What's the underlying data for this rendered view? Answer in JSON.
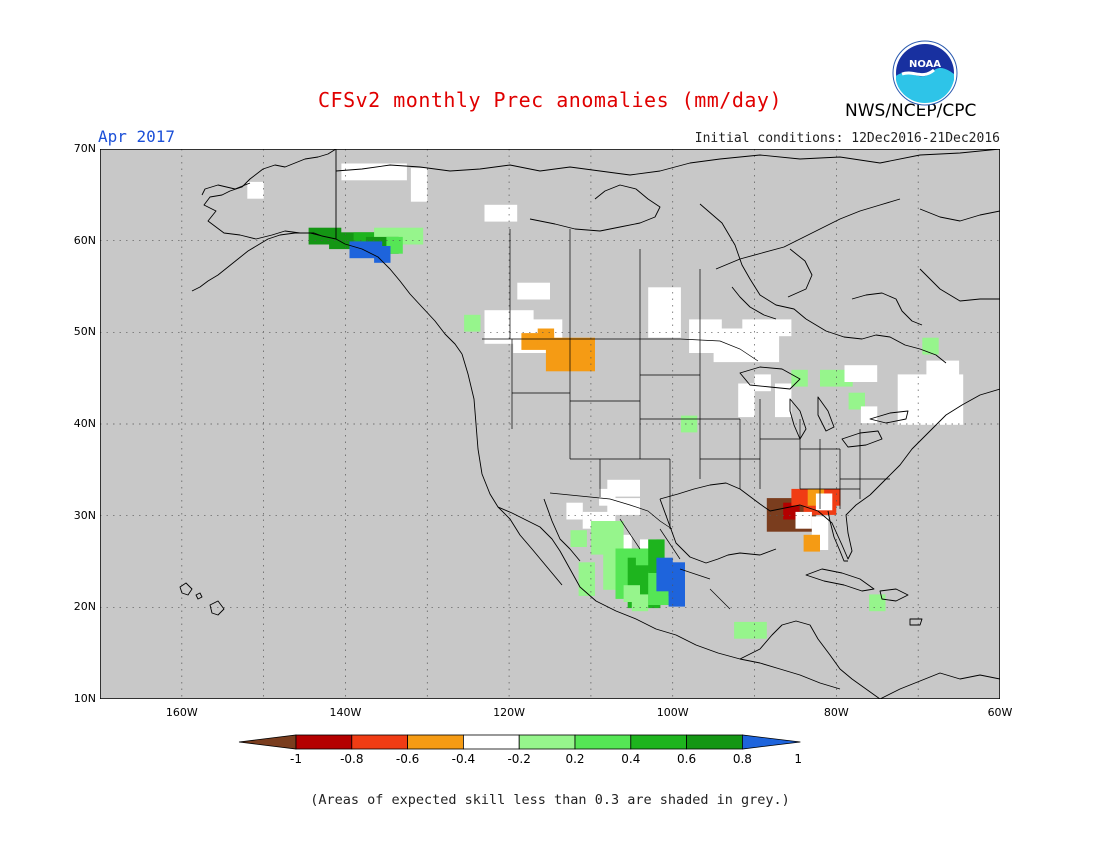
{
  "header": {
    "title": "CFSv2 monthly Prec anomalies (mm/day)",
    "month": "Apr 2017",
    "initial_conditions": "Initial conditions: 12Dec2016-21Dec2016",
    "agency": "NWS/NCEP/CPC",
    "logo_text": "NOAA"
  },
  "map": {
    "projection": "lat-lon",
    "lon_range": [
      -170,
      -60
    ],
    "lat_range": [
      10,
      70
    ],
    "grid": true,
    "background_color": "#c8c8c8",
    "lat_labels": [
      "70N",
      "60N",
      "50N",
      "40N",
      "30N",
      "20N",
      "10N"
    ],
    "lat_values": [
      70,
      60,
      50,
      40,
      30,
      20,
      10
    ],
    "lon_labels": [
      "160W",
      "140W",
      "120W",
      "100W",
      "80W",
      "60W"
    ],
    "lon_values": [
      -160,
      -140,
      -120,
      -100,
      -80,
      -60
    ],
    "anomaly_cells": [
      {
        "lon": -139.5,
        "lat": 67.5,
        "w": 4,
        "h": 1,
        "bin": "near-zero"
      },
      {
        "lon": -131,
        "lat": 67,
        "w": 1,
        "h": 2,
        "bin": "near-zero"
      },
      {
        "lon": -151,
        "lat": 65.5,
        "w": 1,
        "h": 1,
        "bin": "near-zero"
      },
      {
        "lon": -122,
        "lat": 63,
        "w": 2,
        "h": 1,
        "bin": "near-zero"
      },
      {
        "lon": -143.5,
        "lat": 60.5,
        "w": 2,
        "h": 1,
        "bin": "+0.8"
      },
      {
        "lon": -141,
        "lat": 60,
        "w": 3,
        "h": 1,
        "bin": "+0.8"
      },
      {
        "lon": -138,
        "lat": 60,
        "w": 2,
        "h": 1,
        "bin": "+0.6"
      },
      {
        "lon": -135.5,
        "lat": 60.5,
        "w": 3,
        "h": 1,
        "bin": "+0.2"
      },
      {
        "lon": -136.5,
        "lat": 59.5,
        "w": 2,
        "h": 1,
        "bin": "+0.8"
      },
      {
        "lon": -134,
        "lat": 59.5,
        "w": 1,
        "h": 1,
        "bin": "+0.4"
      },
      {
        "lon": -138.5,
        "lat": 59,
        "w": 2,
        "h": 1,
        "bin": ">1"
      },
      {
        "lon": -135.5,
        "lat": 58.5,
        "w": 1,
        "h": 1,
        "bin": ">1"
      },
      {
        "lon": -118,
        "lat": 54.5,
        "w": 2,
        "h": 1,
        "bin": "near-zero"
      },
      {
        "lon": -102,
        "lat": 54,
        "w": 2,
        "h": 3,
        "bin": "near-zero"
      },
      {
        "lon": -122,
        "lat": 51.5,
        "w": 3,
        "h": 2,
        "bin": "near-zero"
      },
      {
        "lon": -118.5,
        "lat": 50.5,
        "w": 3,
        "h": 2,
        "bin": "near-zero"
      },
      {
        "lon": -124.5,
        "lat": 51,
        "w": 1,
        "h": 1,
        "bin": "+0.2"
      },
      {
        "lon": -117.5,
        "lat": 49,
        "w": 2,
        "h": 1,
        "bin": "-0.4"
      },
      {
        "lon": -115.5,
        "lat": 49.5,
        "w": 1,
        "h": 1,
        "bin": "-0.4"
      },
      {
        "lon": -114.5,
        "lat": 48.5,
        "w": 3,
        "h": 2,
        "bin": "-0.4"
      },
      {
        "lon": -97,
        "lat": 50.5,
        "w": 2,
        "h": 2,
        "bin": "near-zero"
      },
      {
        "lon": -94,
        "lat": 49.5,
        "w": 4,
        "h": 2,
        "bin": "near-zero"
      },
      {
        "lon": -90.5,
        "lat": 50.5,
        "w": 3,
        "h": 1,
        "bin": "near-zero"
      },
      {
        "lon": -68.5,
        "lat": 48.5,
        "w": 1,
        "h": 1,
        "bin": "+0.2"
      },
      {
        "lon": -89,
        "lat": 44.5,
        "w": 1,
        "h": 1,
        "bin": "near-zero"
      },
      {
        "lon": -91,
        "lat": 43.5,
        "w": 1,
        "h": 2,
        "bin": "near-zero"
      },
      {
        "lon": -86.5,
        "lat": 43.5,
        "w": 1,
        "h": 2,
        "bin": "near-zero"
      },
      {
        "lon": -84.5,
        "lat": 45,
        "w": 1,
        "h": 1,
        "bin": "+0.2"
      },
      {
        "lon": -81,
        "lat": 45,
        "w": 2,
        "h": 1,
        "bin": "+0.2"
      },
      {
        "lon": -78,
        "lat": 45.5,
        "w": 2,
        "h": 1,
        "bin": "near-zero"
      },
      {
        "lon": -71.5,
        "lat": 44.5,
        "w": 4,
        "h": 3,
        "bin": "near-zero"
      },
      {
        "lon": -68,
        "lat": 46,
        "w": 2,
        "h": 2,
        "bin": "near-zero"
      },
      {
        "lon": -77.5,
        "lat": 42.5,
        "w": 1,
        "h": 1,
        "bin": "+0.2"
      },
      {
        "lon": -76,
        "lat": 41,
        "w": 1,
        "h": 1,
        "bin": "near-zero"
      },
      {
        "lon": -98,
        "lat": 40,
        "w": 1,
        "h": 1,
        "bin": "+0.2"
      },
      {
        "lon": -107,
        "lat": 33,
        "w": 2,
        "h": 1,
        "bin": "near-zero"
      },
      {
        "lon": -108,
        "lat": 32,
        "w": 1,
        "h": 1,
        "bin": "near-zero"
      },
      {
        "lon": -112,
        "lat": 30.5,
        "w": 1,
        "h": 1,
        "bin": "near-zero"
      },
      {
        "lon": -110,
        "lat": 29.5,
        "w": 2,
        "h": 1,
        "bin": "near-zero"
      },
      {
        "lon": -107,
        "lat": 31,
        "w": 2,
        "h": 1,
        "bin": "near-zero"
      },
      {
        "lon": -108,
        "lat": 27,
        "w": 2,
        "h": 1,
        "bin": "near-zero"
      },
      {
        "lon": -103,
        "lat": 26.5,
        "w": 1,
        "h": 1,
        "bin": "near-zero"
      },
      {
        "lon": -109,
        "lat": 28.5,
        "w": 2,
        "h": 2,
        "bin": "+0.2"
      },
      {
        "lon": -107.5,
        "lat": 26.5,
        "w": 1,
        "h": 3,
        "bin": "+0.2"
      },
      {
        "lon": -106,
        "lat": 25.5,
        "w": 2,
        "h": 3,
        "bin": "+0.4"
      },
      {
        "lon": -104.5,
        "lat": 24.5,
        "w": 2,
        "h": 3,
        "bin": "+0.6"
      },
      {
        "lon": -103.5,
        "lat": 25.5,
        "w": 1,
        "h": 1,
        "bin": "+0.4"
      },
      {
        "lon": -102,
        "lat": 23,
        "w": 2,
        "h": 2,
        "bin": "+0.4"
      },
      {
        "lon": -102,
        "lat": 26.5,
        "w": 1,
        "h": 2,
        "bin": "+0.6"
      },
      {
        "lon": -105,
        "lat": 21.5,
        "w": 1,
        "h": 1,
        "bin": "+0.2"
      },
      {
        "lon": -104,
        "lat": 20.5,
        "w": 1,
        "h": 1,
        "bin": "+0.2"
      },
      {
        "lon": -110.5,
        "lat": 24,
        "w": 1,
        "h": 2,
        "bin": "+0.2"
      },
      {
        "lon": -111.5,
        "lat": 27.5,
        "w": 1,
        "h": 1,
        "bin": "+0.2"
      },
      {
        "lon": -101,
        "lat": 24.5,
        "w": 1,
        "h": 2,
        "bin": ">1"
      },
      {
        "lon": -99.5,
        "lat": 24,
        "w": 1,
        "h": 2,
        "bin": ">1"
      },
      {
        "lon": -99.5,
        "lat": 21,
        "w": 1,
        "h": 1,
        "bin": ">1"
      },
      {
        "lon": -87.5,
        "lat": 31,
        "w": 3,
        "h": 2,
        "bin": "-1"
      },
      {
        "lon": -85.5,
        "lat": 30.5,
        "w": 1,
        "h": 1,
        "bin": "-0.8"
      },
      {
        "lon": -84.5,
        "lat": 32,
        "w": 3,
        "h": 1,
        "bin": "-0.6"
      },
      {
        "lon": -83,
        "lat": 31,
        "w": 2,
        "h": 1,
        "bin": "-0.6"
      },
      {
        "lon": -82.5,
        "lat": 32,
        "w": 1,
        "h": 1,
        "bin": "-0.4"
      },
      {
        "lon": -81.5,
        "lat": 31.5,
        "w": 1,
        "h": 1,
        "bin": "near-zero"
      },
      {
        "lon": -82,
        "lat": 29,
        "w": 1,
        "h": 2,
        "bin": "near-zero"
      },
      {
        "lon": -83,
        "lat": 27,
        "w": 1,
        "h": 1,
        "bin": "-0.4"
      },
      {
        "lon": -84,
        "lat": 29.5,
        "w": 1,
        "h": 1,
        "bin": "near-zero"
      },
      {
        "lon": -75,
        "lat": 20.5,
        "w": 1,
        "h": 1,
        "bin": "+0.2"
      },
      {
        "lon": -91.5,
        "lat": 17.5,
        "w": 2,
        "h": 1,
        "bin": "+0.2"
      }
    ]
  },
  "colorbar": {
    "bins": [
      "-1",
      "-0.8",
      "-0.6",
      "-0.4",
      "-0.2",
      "near-zero",
      "+0.2",
      "+0.4",
      "+0.6",
      "+0.8",
      ">1"
    ],
    "colors": {
      "-1": "#7a3d1e",
      "-0.8": "#b40000",
      "-0.6": "#f03c14",
      "-0.4": "#f59b14",
      "-0.2": "#f59b14",
      "near-zero": "#ffffff",
      "+0.2": "#96f58c",
      "+0.4": "#55e655",
      "+0.6": "#1eb41e",
      "+0.8": "#149614",
      ">1": "#1e64dc"
    },
    "segment_colors": [
      "#b40000",
      "#f03c14",
      "#f59b14",
      "#ffffff",
      "#96f58c",
      "#55e655",
      "#1eb41e",
      "#149614"
    ],
    "low_arrow_color": "#7a3d1e",
    "high_arrow_color": "#1e64dc",
    "labels": [
      "-1",
      "-0.8",
      "-0.6",
      "-0.4",
      "-0.2",
      "0.2",
      "0.4",
      "0.6",
      "0.8",
      "1"
    ]
  },
  "footnote": "(Areas of expected skill less than 0.3 are shaded in grey.)"
}
